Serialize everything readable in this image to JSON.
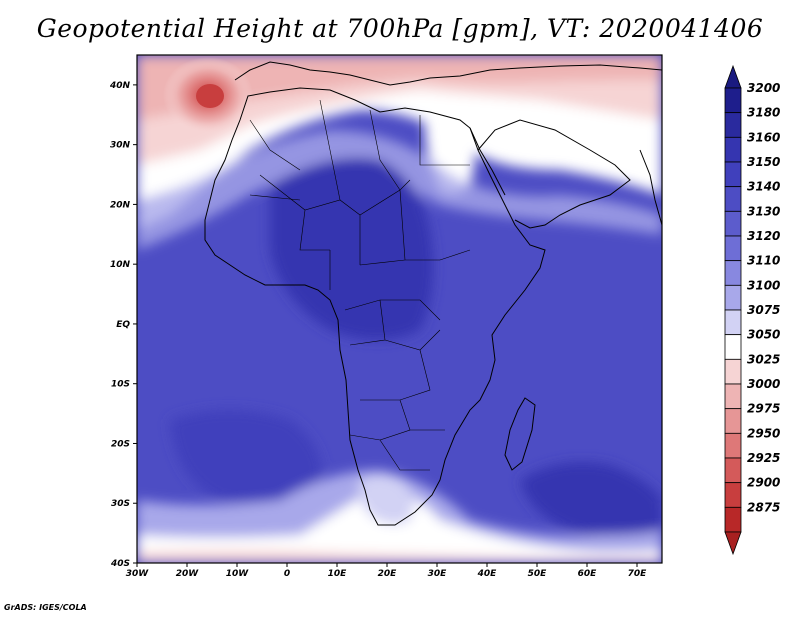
{
  "title": "Geopotential Height at 700hPa [gpm], VT: 2020041406",
  "credit": "GrADS: IGES/COLA",
  "map": {
    "projection": "lat-lon",
    "lon_range": [
      -30,
      75
    ],
    "lat_range": [
      -40,
      45
    ],
    "x_ticks": [
      {
        "value": -30,
        "label": "30W"
      },
      {
        "value": -20,
        "label": "20W"
      },
      {
        "value": -10,
        "label": "10W"
      },
      {
        "value": 0,
        "label": "0"
      },
      {
        "value": 10,
        "label": "10E"
      },
      {
        "value": 20,
        "label": "20E"
      },
      {
        "value": 30,
        "label": "30E"
      },
      {
        "value": 40,
        "label": "40E"
      },
      {
        "value": 50,
        "label": "50E"
      },
      {
        "value": 60,
        "label": "60E"
      },
      {
        "value": 70,
        "label": "70E"
      }
    ],
    "y_ticks": [
      {
        "value": 40,
        "label": "40N"
      },
      {
        "value": 30,
        "label": "30N"
      },
      {
        "value": 20,
        "label": "20N"
      },
      {
        "value": 10,
        "label": "10N"
      },
      {
        "value": 0,
        "label": "EQ"
      },
      {
        "value": -10,
        "label": "10S"
      },
      {
        "value": -20,
        "label": "20S"
      },
      {
        "value": -30,
        "label": "30S"
      },
      {
        "value": -40,
        "label": "40S"
      }
    ]
  },
  "colorbar": {
    "levels": [
      {
        "label": "3200",
        "color": "#1e1e8c"
      },
      {
        "label": "3180",
        "color": "#2a2a9e"
      },
      {
        "label": "3160",
        "color": "#3535b0"
      },
      {
        "label": "3150",
        "color": "#4040bc"
      },
      {
        "label": "3140",
        "color": "#4d4dc4"
      },
      {
        "label": "3130",
        "color": "#5c5ccc"
      },
      {
        "label": "3120",
        "color": "#6e6ed6"
      },
      {
        "label": "3110",
        "color": "#8888e0"
      },
      {
        "label": "3100",
        "color": "#a8a8ea"
      },
      {
        "label": "3075",
        "color": "#d2d2f4"
      },
      {
        "label": "3050",
        "color": "#ffffff"
      },
      {
        "label": "3025",
        "color": "#f6d4d4"
      },
      {
        "label": "3000",
        "color": "#eeb4b4"
      },
      {
        "label": "2975",
        "color": "#e69696"
      },
      {
        "label": "2950",
        "color": "#de7878"
      },
      {
        "label": "2925",
        "color": "#d45a5a"
      },
      {
        "label": "2900",
        "color": "#c83e3e"
      },
      {
        "label": "2875",
        "color": "#b82828"
      }
    ],
    "top_cap_color": "#1a1a80",
    "bottom_cap_color": "#a82020"
  }
}
